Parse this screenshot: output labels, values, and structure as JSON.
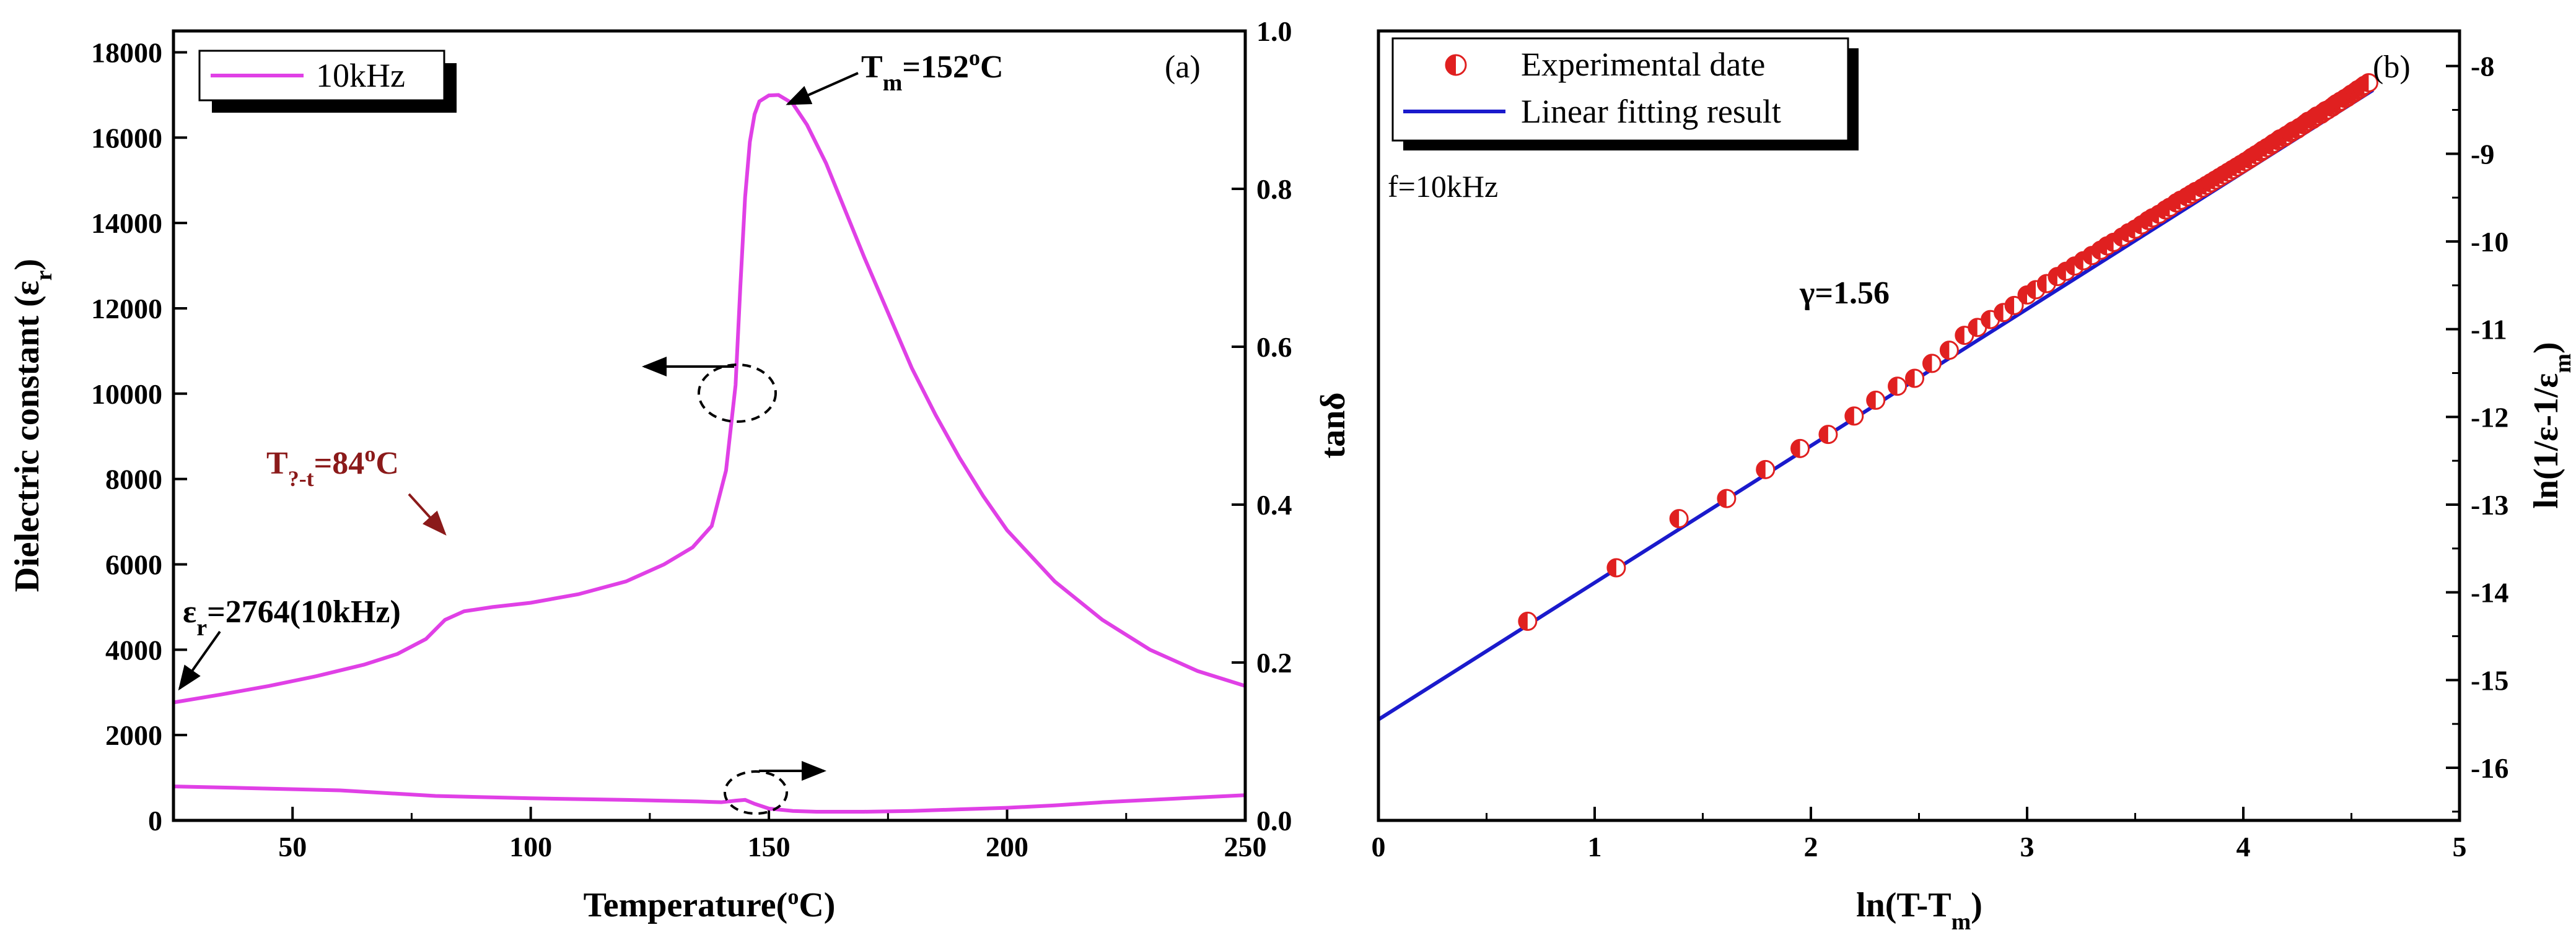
{
  "colors": {
    "curve": "#e040e6",
    "fit_line": "#1a1acc",
    "marker": "#e02020",
    "tm_dark_red": "#8b1a1a",
    "axis": "#000000"
  },
  "chart_data": [
    {
      "id": "a",
      "type": "line",
      "panel_label": "(a)",
      "xlabel": "Temperature(°C)",
      "xlabel_parts": {
        "main": "Temperature(",
        "sup": "o",
        "tail": "C)"
      },
      "ylabel": "Dielectric constant (εr)",
      "ylabel_parts": {
        "main": "Dielectric constant (ε",
        "sub": "r",
        "tail": ")"
      },
      "y2label": "tanδ",
      "xlim": [
        25,
        250
      ],
      "ylim": [
        0,
        18500
      ],
      "y2lim": [
        0,
        1.0
      ],
      "xticks": [
        50,
        100,
        150,
        200,
        250
      ],
      "yticks": [
        0,
        2000,
        4000,
        6000,
        8000,
        10000,
        12000,
        14000,
        16000,
        18000
      ],
      "y2ticks": [
        "0.0",
        "0.2",
        "0.4",
        "0.6",
        "0.8",
        "1.0"
      ],
      "legend": {
        "label": "10kHz",
        "position": "top-left"
      },
      "series": [
        {
          "name": "Dielectric constant 10kHz",
          "axis": "left",
          "x": [
            25,
            35,
            45,
            55,
            65,
            72,
            78,
            82,
            86,
            92,
            100,
            110,
            120,
            128,
            134,
            138,
            141,
            143,
            144,
            145,
            146,
            147,
            148,
            150,
            152,
            155,
            158,
            162,
            166,
            170,
            175,
            180,
            185,
            190,
            195,
            200,
            210,
            220,
            230,
            240,
            250
          ],
          "values": [
            2764,
            2950,
            3150,
            3380,
            3650,
            3900,
            4250,
            4700,
            4900,
            5000,
            5100,
            5300,
            5600,
            6000,
            6400,
            6900,
            8200,
            10200,
            12500,
            14600,
            15900,
            16550,
            16850,
            16990,
            17000,
            16800,
            16300,
            15400,
            14300,
            13200,
            11900,
            10600,
            9500,
            8500,
            7600,
            6800,
            5600,
            4700,
            4000,
            3500,
            3150
          ]
        },
        {
          "name": "tanδ 10kHz",
          "axis": "right",
          "x": [
            25,
            40,
            60,
            80,
            100,
            120,
            135,
            140,
            143,
            145,
            147,
            150,
            155,
            160,
            170,
            180,
            190,
            200,
            210,
            220,
            230,
            240,
            250
          ],
          "values": [
            0.043,
            0.041,
            0.038,
            0.031,
            0.028,
            0.026,
            0.024,
            0.023,
            0.025,
            0.026,
            0.021,
            0.015,
            0.012,
            0.011,
            0.011,
            0.012,
            0.014,
            0.016,
            0.019,
            0.023,
            0.026,
            0.029,
            0.032
          ]
        }
      ],
      "annotations": {
        "tm": {
          "prefix": "T",
          "sub": "m",
          "mid": "=152",
          "sup": "o",
          "tail": "C",
          "text": "Tm=152°C"
        },
        "t_transition": {
          "prefix": "T",
          "sub": "?-t",
          "mid": "=84",
          "sup": "o",
          "tail": "C",
          "text": "T?-t=84°C"
        },
        "eps": {
          "prefix": "ε",
          "sub": "r",
          "tail": "=2764(10kHz)",
          "text": "εr=2764(10kHz)"
        }
      }
    },
    {
      "id": "b",
      "type": "scatter",
      "panel_label": "(b)",
      "xlabel": "ln(T-Tm)",
      "xlabel_parts": {
        "main": "ln(T-T",
        "sub": "m",
        "tail": ")"
      },
      "ylabel": "ln(1/ε-1/εm)",
      "ylabel_parts": {
        "main": "ln(1/ε-1/ε",
        "sub": "m",
        "tail": ")"
      },
      "xlim": [
        0,
        5
      ],
      "ylim": [
        -16.6,
        -7.6
      ],
      "xticks": [
        0,
        1,
        2,
        3,
        4,
        5
      ],
      "yticks": [
        -16,
        -15,
        -14,
        -13,
        -12,
        -11,
        -10,
        -9,
        -8
      ],
      "frequency_text": "f=10kHz",
      "gamma_text": "γ=1.56",
      "legend": {
        "position": "top-left",
        "entries": [
          "Experimental date",
          "Linear fitting result"
        ]
      },
      "fit": {
        "slope": 1.56,
        "intercept": -15.45,
        "x_range": [
          0,
          4.6
        ]
      },
      "series": [
        {
          "name": "Experimental date",
          "x": [
            0.69,
            1.1,
            1.39,
            1.61,
            1.79,
            1.95,
            2.08,
            2.2,
            2.3,
            2.4,
            2.48,
            2.56,
            2.64,
            2.71,
            2.77,
            2.83,
            2.89,
            2.94,
            3.0,
            3.04,
            3.09,
            3.14,
            3.18,
            3.22,
            3.26,
            3.3,
            3.34,
            3.37,
            3.4,
            3.44,
            3.47,
            3.5,
            3.53,
            3.56,
            3.58,
            3.61,
            3.64,
            3.66,
            3.69,
            3.71,
            3.74,
            3.76,
            3.78,
            3.81,
            3.83,
            3.85,
            3.87,
            3.89,
            3.91,
            3.93,
            3.95,
            3.97,
            3.99,
            4.01,
            4.03,
            4.04,
            4.06,
            4.08,
            4.09,
            4.11,
            4.13,
            4.14,
            4.16,
            4.17,
            4.19,
            4.2,
            4.22,
            4.23,
            4.25,
            4.26,
            4.28,
            4.29,
            4.3,
            4.32,
            4.33,
            4.34,
            4.36,
            4.37,
            4.38,
            4.39,
            4.41,
            4.42,
            4.43,
            4.44,
            4.45,
            4.47,
            4.48,
            4.49,
            4.5,
            4.51,
            4.52,
            4.53,
            4.54,
            4.55,
            4.56,
            4.58
          ],
          "values": [
            -14.33,
            -13.72,
            -13.16,
            -12.93,
            -12.6,
            -12.36,
            -12.2,
            -11.99,
            -11.81,
            -11.65,
            -11.56,
            -11.39,
            -11.24,
            -11.07,
            -10.98,
            -10.89,
            -10.81,
            -10.73,
            -10.61,
            -10.55,
            -10.48,
            -10.4,
            -10.34,
            -10.28,
            -10.22,
            -10.16,
            -10.1,
            -10.05,
            -10.01,
            -9.95,
            -9.9,
            -9.86,
            -9.81,
            -9.76,
            -9.73,
            -9.69,
            -9.64,
            -9.61,
            -9.56,
            -9.53,
            -9.49,
            -9.46,
            -9.43,
            -9.39,
            -9.36,
            -9.33,
            -9.3,
            -9.27,
            -9.24,
            -9.21,
            -9.18,
            -9.15,
            -9.12,
            -9.09,
            -9.06,
            -9.04,
            -9.01,
            -8.98,
            -8.96,
            -8.93,
            -8.9,
            -8.88,
            -8.85,
            -8.83,
            -8.81,
            -8.79,
            -8.76,
            -8.74,
            -8.72,
            -8.7,
            -8.67,
            -8.65,
            -8.63,
            -8.61,
            -8.59,
            -8.57,
            -8.55,
            -8.53,
            -8.51,
            -8.5,
            -8.47,
            -8.45,
            -8.43,
            -8.42,
            -8.4,
            -8.37,
            -8.36,
            -8.34,
            -8.32,
            -8.31,
            -8.29,
            -8.27,
            -8.26,
            -8.24,
            -8.22,
            -8.19
          ]
        }
      ]
    }
  ]
}
